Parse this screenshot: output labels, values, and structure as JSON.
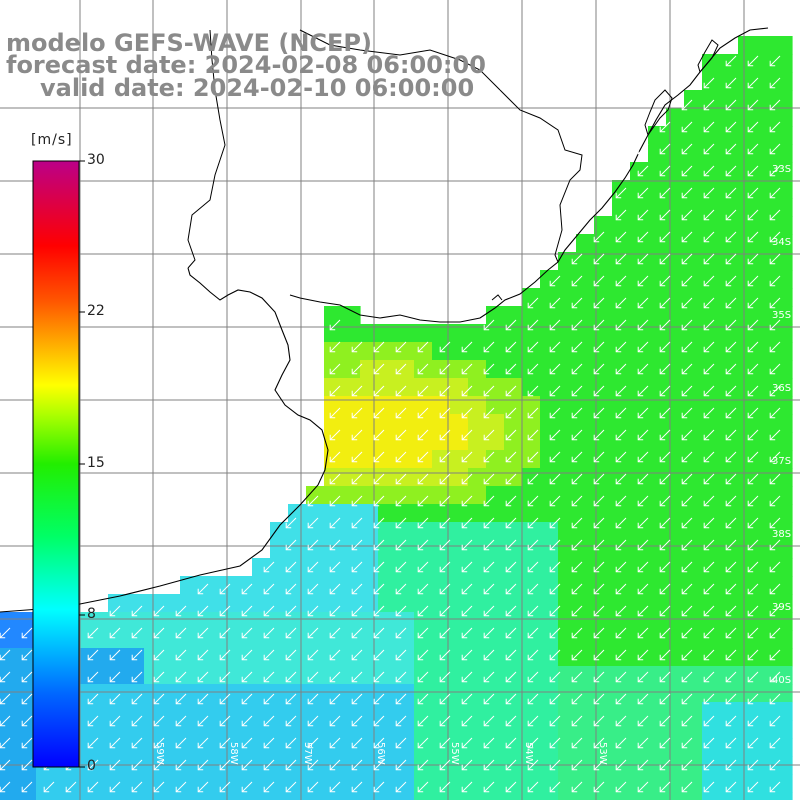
{
  "titles": {
    "model": "modelo GEFS-WAVE (NCEP)",
    "forecast": "forecast date: 2024-02-08 06:00:00",
    "valid": "valid date: 2024-02-10 06:00:00"
  },
  "legend": {
    "unit": "[m/s]",
    "ticks": [
      "30",
      "22",
      "15",
      "8",
      "0"
    ],
    "colors": [
      "#0000ff",
      "#00aaff",
      "#00ffff",
      "#00ff80",
      "#00dd00",
      "#7fff00",
      "#ffff00",
      "#ffaa00",
      "#ff5500",
      "#ff0000",
      "#dd0055",
      "#bb0088"
    ]
  },
  "map": {
    "lat_labels": [
      "33S",
      "34S",
      "35S",
      "36S",
      "37S",
      "38S",
      "39S",
      "40S"
    ],
    "lon_labels": [
      "59W",
      "58W",
      "57W",
      "56W",
      "55W",
      "54W",
      "53W"
    ],
    "wind_direction": "from northeast",
    "colors": {
      "land": "#ffffff",
      "coast": "#000000",
      "grid": "#808080",
      "blue": "#1e90ff",
      "cyan": "#00e5ff",
      "green": "#22dd22",
      "yellow": "#ffee00"
    }
  }
}
